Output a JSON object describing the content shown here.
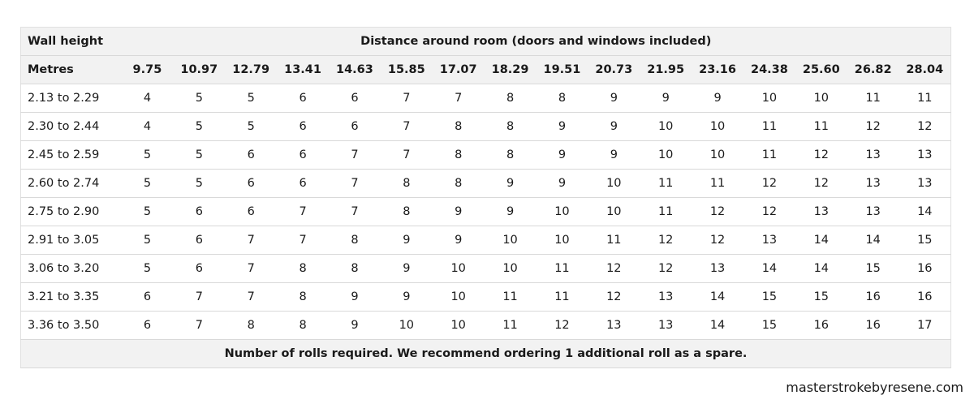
{
  "table": {
    "wall_height_label": "Wall height",
    "distance_label": "Distance around room (doors and windows included)",
    "metres_label": "Metres",
    "distances": [
      "9.75",
      "10.97",
      "12.79",
      "13.41",
      "14.63",
      "15.85",
      "17.07",
      "18.29",
      "19.51",
      "20.73",
      "21.95",
      "23.16",
      "24.38",
      "25.60",
      "26.82",
      "28.04"
    ],
    "rows": [
      {
        "height": "2.13 to 2.29",
        "values": [
          "4",
          "5",
          "5",
          "6",
          "6",
          "7",
          "7",
          "8",
          "8",
          "9",
          "9",
          "9",
          "10",
          "10",
          "11",
          "11"
        ]
      },
      {
        "height": "2.30 to 2.44",
        "values": [
          "4",
          "5",
          "5",
          "6",
          "6",
          "7",
          "8",
          "8",
          "9",
          "9",
          "10",
          "10",
          "11",
          "11",
          "12",
          "12"
        ]
      },
      {
        "height": "2.45 to 2.59",
        "values": [
          "5",
          "5",
          "6",
          "6",
          "7",
          "7",
          "8",
          "8",
          "9",
          "9",
          "10",
          "10",
          "11",
          "12",
          "13",
          "13"
        ]
      },
      {
        "height": "2.60 to 2.74",
        "values": [
          "5",
          "5",
          "6",
          "6",
          "7",
          "8",
          "8",
          "9",
          "9",
          "10",
          "11",
          "11",
          "12",
          "12",
          "13",
          "13"
        ]
      },
      {
        "height": "2.75 to 2.90",
        "values": [
          "5",
          "6",
          "6",
          "7",
          "7",
          "8",
          "9",
          "9",
          "10",
          "10",
          "11",
          "12",
          "12",
          "13",
          "13",
          "14"
        ]
      },
      {
        "height": "2.91 to 3.05",
        "values": [
          "5",
          "6",
          "7",
          "7",
          "8",
          "9",
          "9",
          "10",
          "10",
          "11",
          "12",
          "12",
          "13",
          "14",
          "14",
          "15"
        ]
      },
      {
        "height": "3.06 to 3.20",
        "values": [
          "5",
          "6",
          "7",
          "8",
          "8",
          "9",
          "10",
          "10",
          "11",
          "12",
          "12",
          "13",
          "14",
          "14",
          "15",
          "16"
        ]
      },
      {
        "height": "3.21 to 3.35",
        "values": [
          "6",
          "7",
          "7",
          "8",
          "9",
          "9",
          "10",
          "11",
          "11",
          "12",
          "13",
          "14",
          "15",
          "15",
          "16",
          "16"
        ]
      },
      {
        "height": "3.36 to 3.50",
        "values": [
          "6",
          "7",
          "8",
          "8",
          "9",
          "10",
          "10",
          "11",
          "12",
          "13",
          "13",
          "14",
          "15",
          "16",
          "16",
          "17"
        ]
      }
    ],
    "footer_note": "Number of rolls required. We recommend ordering 1 additional roll as a spare."
  },
  "brand": {
    "text": "masterstrokebyresene.com"
  }
}
